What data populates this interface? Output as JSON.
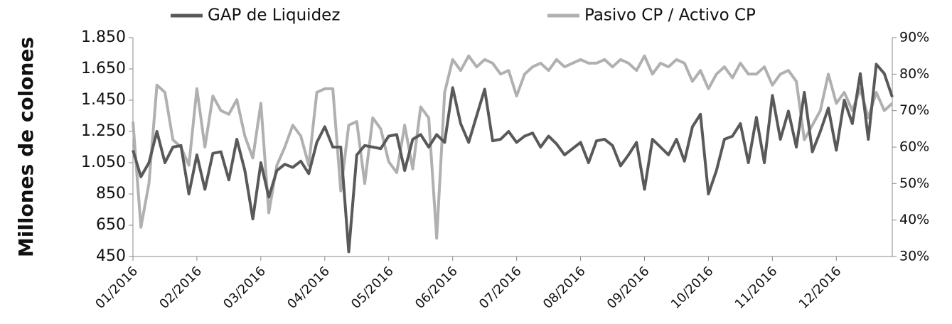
{
  "chart_data": {
    "type": "line",
    "y_label": "Millones de colones",
    "categories": [
      "01/2016",
      null,
      null,
      null,
      null,
      null,
      null,
      null,
      "02/2016",
      null,
      null,
      null,
      null,
      null,
      null,
      null,
      "03/2016",
      null,
      null,
      null,
      null,
      null,
      null,
      null,
      "04/2016",
      null,
      null,
      null,
      null,
      null,
      null,
      null,
      "05/2016",
      null,
      null,
      null,
      null,
      null,
      null,
      null,
      "06/2016",
      null,
      null,
      null,
      null,
      null,
      null,
      null,
      "07/2016",
      null,
      null,
      null,
      null,
      null,
      null,
      null,
      "08/2016",
      null,
      null,
      null,
      null,
      null,
      null,
      null,
      "09/2016",
      null,
      null,
      null,
      null,
      null,
      null,
      null,
      "10/2016",
      null,
      null,
      null,
      null,
      null,
      null,
      null,
      "11/2016",
      null,
      null,
      null,
      null,
      null,
      null,
      null,
      "12/2016",
      null,
      null,
      null,
      null,
      null,
      null,
      null
    ],
    "series": [
      {
        "name": "GAP de Liquidez",
        "color": "#595959",
        "values": [
          1130,
          960,
          1050,
          1250,
          1050,
          1150,
          1160,
          850,
          1100,
          880,
          1110,
          1120,
          940,
          1200,
          1000,
          690,
          1050,
          830,
          1000,
          1040,
          1020,
          1060,
          980,
          1180,
          1280,
          1150,
          1150,
          480,
          1100,
          1160,
          1150,
          1140,
          1220,
          1230,
          1000,
          1200,
          1230,
          1150,
          1230,
          1180,
          1530,
          1300,
          1180,
          1350,
          1520,
          1190,
          1200,
          1250,
          1180,
          1220,
          1240,
          1150,
          1220,
          1170,
          1100,
          1140,
          1180,
          1050,
          1190,
          1200,
          1160,
          1030,
          1100,
          1180,
          880,
          1200,
          1150,
          1100,
          1200,
          1060,
          1280,
          1360,
          850,
          1000,
          1200,
          1220,
          1300,
          1050,
          1340,
          1050,
          1480,
          1200,
          1380,
          1150,
          1500,
          1120,
          1250,
          1400,
          1130,
          1450,
          1300,
          1620,
          1200,
          1680,
          1620,
          1470
        ]
      },
      {
        "name": "Pasivo CP / Activo CP",
        "color": "#b0b0b0",
        "axis": "y2",
        "values": [
          67,
          38,
          50,
          77,
          75,
          62,
          60,
          55,
          76,
          60,
          74,
          70,
          69,
          73,
          63,
          57,
          72,
          42,
          55,
          60,
          66,
          63,
          55,
          75,
          76,
          76,
          48,
          66,
          67,
          50,
          68,
          65,
          56,
          53,
          66,
          54,
          71,
          68,
          35,
          75,
          84,
          81,
          85,
          82,
          84,
          83,
          80,
          81,
          74,
          80,
          82,
          83,
          81,
          84,
          82,
          83,
          84,
          83,
          83,
          84,
          82,
          84,
          83,
          81,
          85,
          80,
          83,
          82,
          84,
          83,
          78,
          81,
          76,
          80,
          82,
          79,
          83,
          80,
          80,
          82,
          77,
          80,
          81,
          78,
          62,
          66,
          70,
          80,
          72,
          75,
          70,
          76,
          68,
          75,
          70,
          72
        ]
      }
    ],
    "ylim": [
      450,
      1850
    ],
    "yticks": [
      450,
      650,
      850,
      {
        "value": 1050,
        "label": "1.050"
      },
      {
        "value": 1250,
        "label": "1.250"
      },
      {
        "value": 1450,
        "label": "1.450"
      },
      {
        "value": 1650,
        "label": "1.650"
      },
      {
        "value": 1850,
        "label": "1.850"
      }
    ],
    "y2lim": [
      30,
      90
    ],
    "y2ticks": [
      {
        "value": 30,
        "label": "30%"
      },
      {
        "value": 40,
        "label": "40%"
      },
      {
        "value": 50,
        "label": "50%"
      },
      {
        "value": 60,
        "label": "60%"
      },
      {
        "value": 70,
        "label": "70%"
      },
      {
        "value": 80,
        "label": "80%"
      },
      {
        "value": 90,
        "label": "90%"
      }
    ],
    "grid": false,
    "legend": "top"
  }
}
